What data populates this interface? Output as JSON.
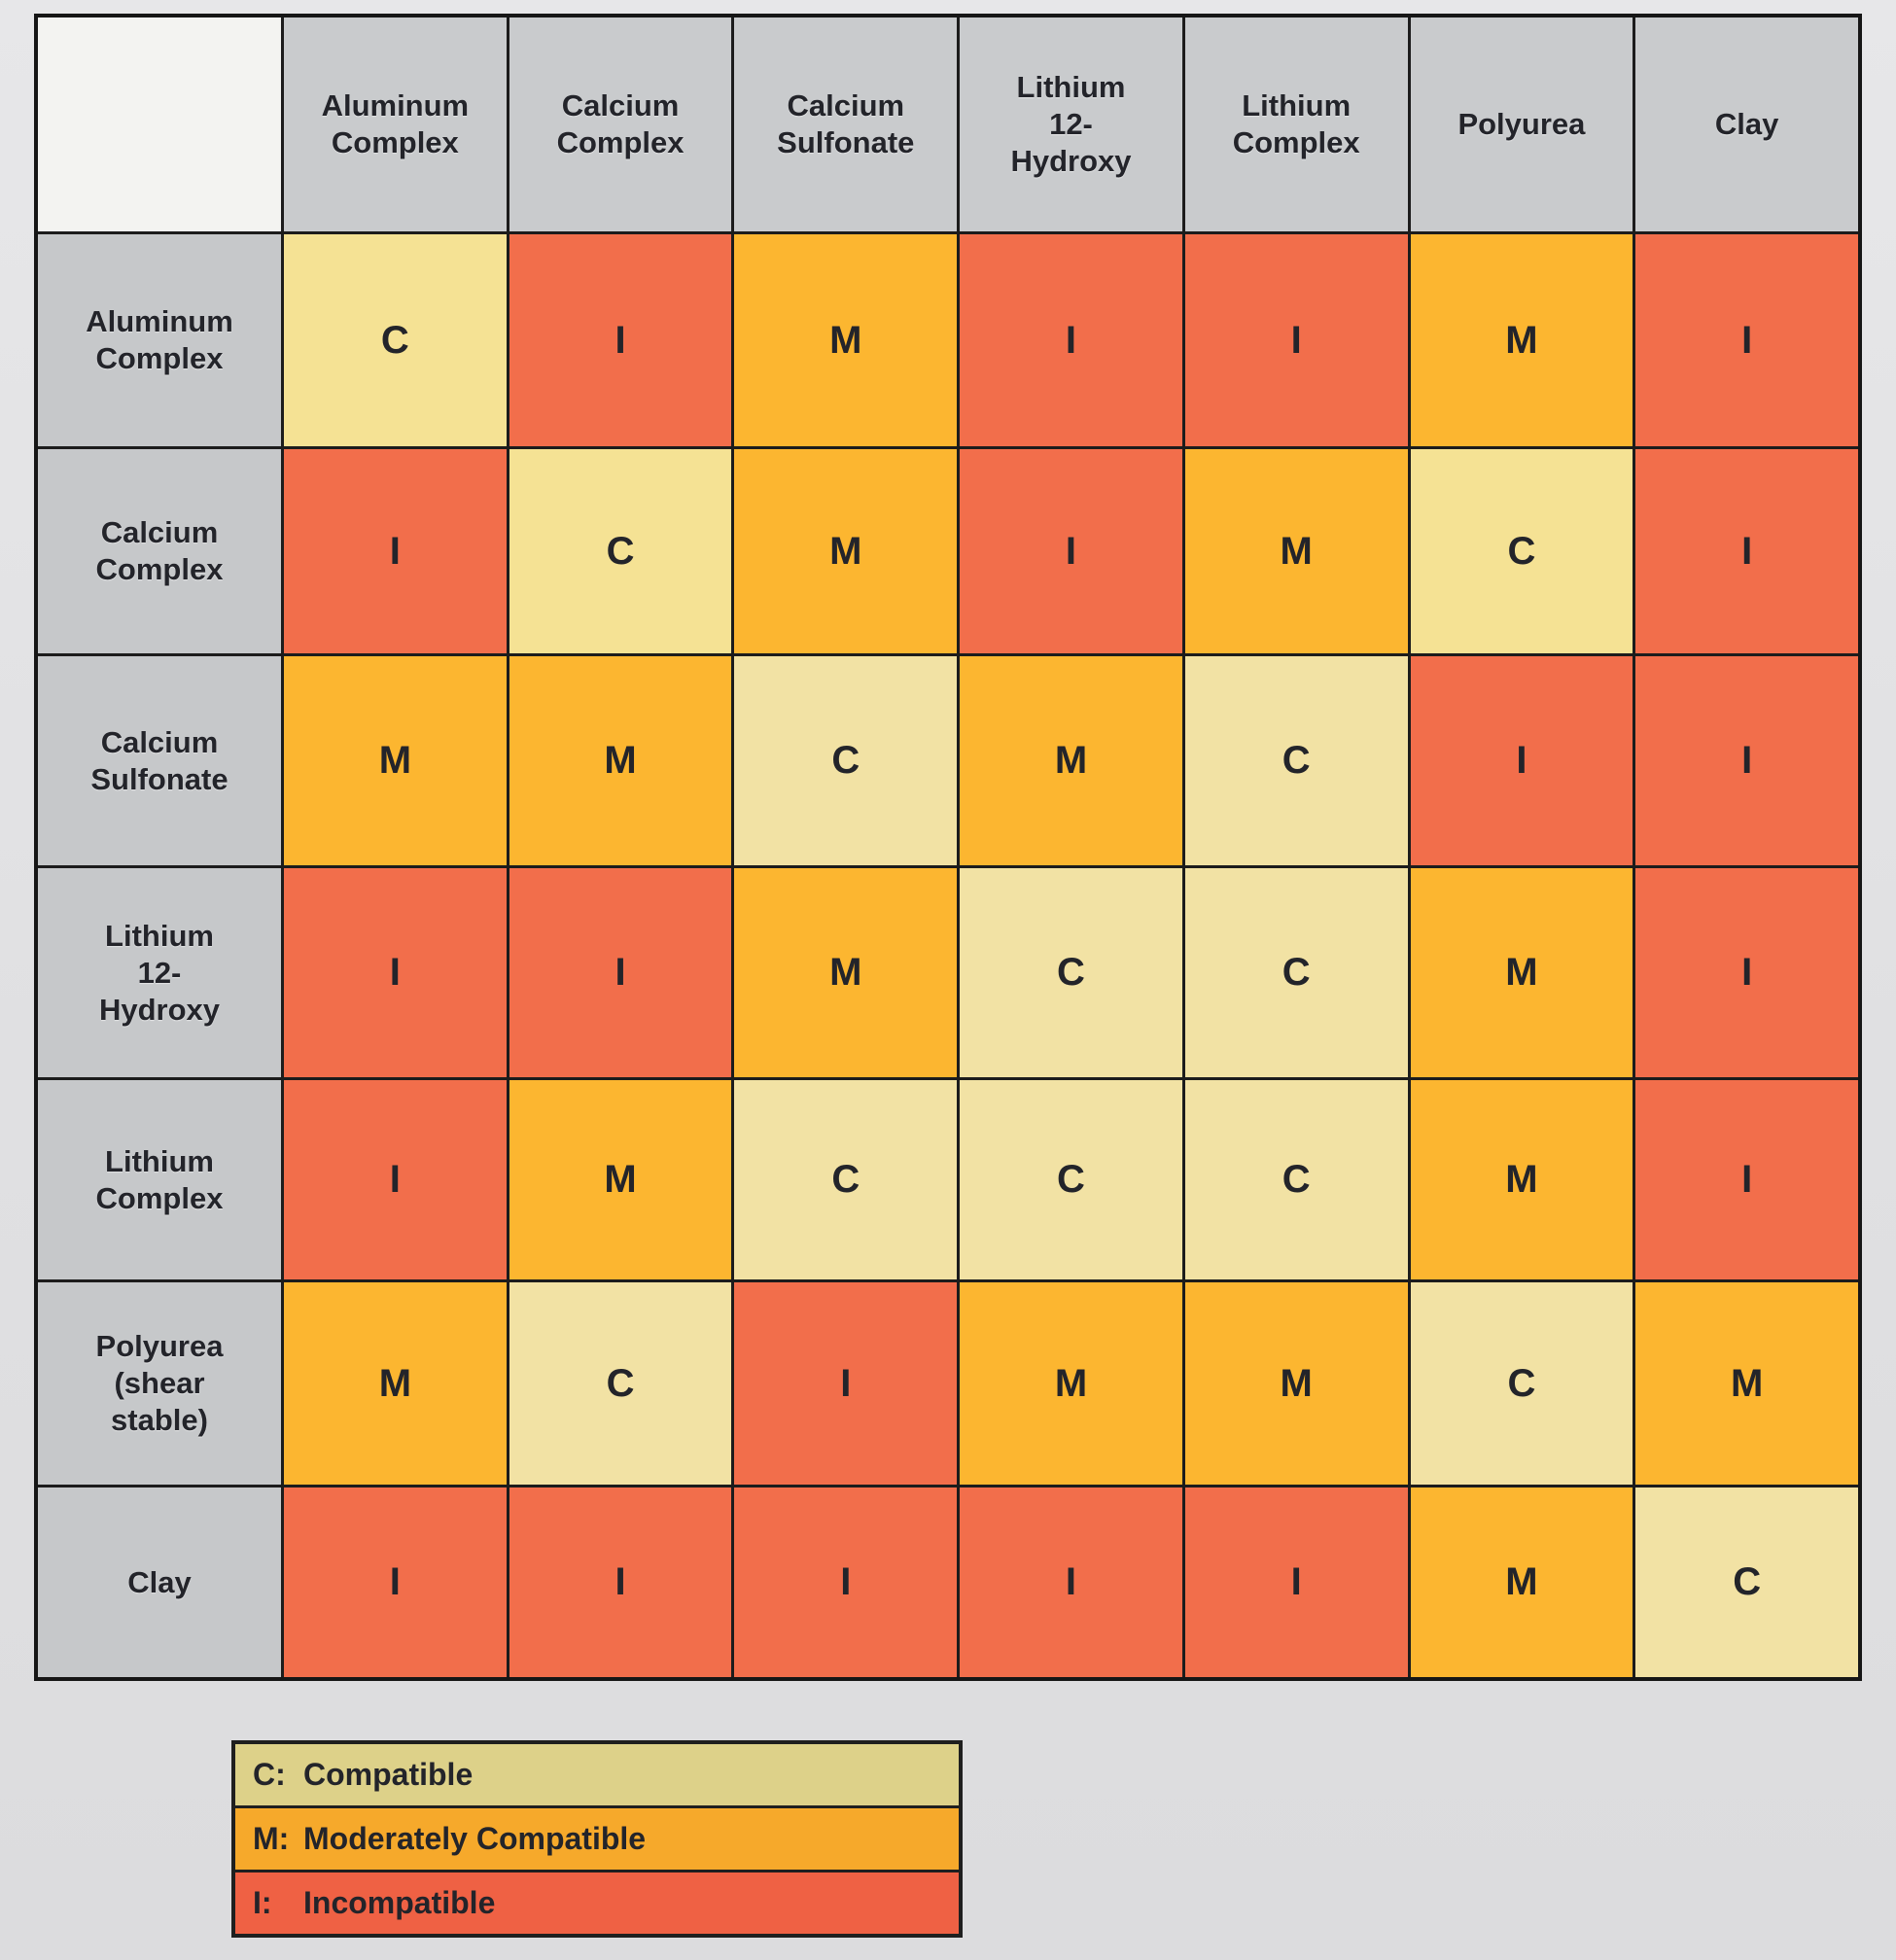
{
  "chart_data": {
    "type": "heatmap",
    "columns": [
      "Aluminum Complex",
      "Calcium Complex",
      "Calcium Sulfonate",
      "Lithium 12-Hydroxy",
      "Lithium Complex",
      "Polyurea",
      "Clay"
    ],
    "rows": [
      "Aluminum Complex",
      "Calcium Complex",
      "Calcium Sulfonate",
      "Lithium 12-Hydroxy",
      "Lithium Complex",
      "Polyurea (shear stable)",
      "Clay"
    ],
    "values": [
      [
        "C",
        "I",
        "M",
        "I",
        "I",
        "M",
        "I"
      ],
      [
        "I",
        "C",
        "M",
        "I",
        "M",
        "C",
        "I"
      ],
      [
        "M",
        "M",
        "C",
        "M",
        "C",
        "I",
        "I"
      ],
      [
        "I",
        "I",
        "M",
        "C",
        "C",
        "M",
        "I"
      ],
      [
        "I",
        "M",
        "C",
        "C",
        "C",
        "M",
        "I"
      ],
      [
        "M",
        "C",
        "I",
        "M",
        "M",
        "C",
        "M"
      ],
      [
        "I",
        "I",
        "I",
        "I",
        "I",
        "M",
        "C"
      ]
    ],
    "value_legend": {
      "C": "Compatible",
      "M": "Moderately Compatible",
      "I": "Incompatible"
    },
    "cell_colors": {
      "C": "#f5e294",
      "M": "#fcb630",
      "I": "#f26e4b"
    },
    "header_bg": "#c9cbcd",
    "grid_line_color": "#1c1c1c"
  },
  "matrix": {
    "corner_label": "",
    "column_headers_display": [
      "Aluminum\nComplex",
      "Calcium\nComplex",
      "Calcium\nSulfonate",
      "Lithium\n12-\nHydroxy",
      "Lithium\nComplex",
      "Polyurea",
      "Clay"
    ],
    "row_headers_display": [
      "Aluminum\nComplex",
      "Calcium\nComplex",
      "Calcium\nSulfonate",
      "Lithium\n12-\nHydroxy",
      "Lithium\nComplex",
      "Polyurea\n(shear\nstable)",
      "Clay"
    ]
  },
  "legend": {
    "items": [
      {
        "code": "C:",
        "label": "Compatible",
        "color": "#ddd189"
      },
      {
        "code": "M:",
        "label": "Moderately Compatible",
        "color": "#f6a92b"
      },
      {
        "code": "I:",
        "label": "Incompatible",
        "color": "#ef6144"
      }
    ]
  }
}
